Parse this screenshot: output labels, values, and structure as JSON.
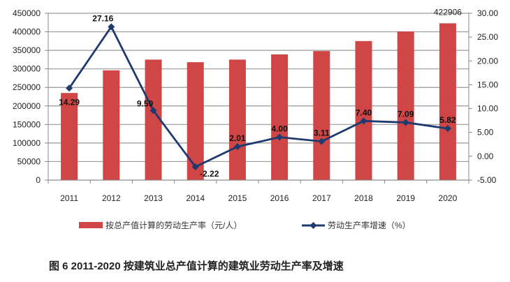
{
  "chart_data": {
    "type": "bar+line",
    "categories": [
      "2011",
      "2012",
      "2013",
      "2014",
      "2015",
      "2016",
      "2017",
      "2018",
      "2019",
      "2020"
    ],
    "series": [
      {
        "name": "按总产值计算的劳动生产率（元/人）",
        "type": "bar",
        "axis": "left",
        "color": "#d04545",
        "values": [
          235000,
          296000,
          325000,
          318000,
          325000,
          339000,
          348000,
          375000,
          401000,
          422906
        ],
        "data_labels": {
          "9": "422906"
        }
      },
      {
        "name": "劳动生产率增速（%）",
        "type": "line",
        "axis": "right",
        "color": "#1f3a6e",
        "values": [
          14.29,
          27.16,
          9.59,
          -2.22,
          2.01,
          4.0,
          3.11,
          7.4,
          7.09,
          5.82
        ],
        "data_labels": [
          "14.29",
          "27.16",
          "9.59",
          "-2.22",
          "2.01",
          "4.00",
          "3.11",
          "7.40",
          "7.09",
          "5.82"
        ]
      }
    ],
    "left_axis": {
      "ylim": [
        0,
        450000
      ],
      "ticks": [
        "0",
        "50000",
        "100000",
        "150000",
        "200000",
        "250000",
        "300000",
        "350000",
        "400000",
        "450000"
      ]
    },
    "right_axis": {
      "ylim": [
        -5,
        30
      ],
      "ticks": [
        "-5.00",
        "0.00",
        "5.00",
        "10.00",
        "15.00",
        "20.00",
        "25.00",
        "30.00"
      ]
    },
    "grid": true,
    "legend": "bottom",
    "title": "图 6   2011-2020 按建筑业总产值计算的建筑业劳动生产率及增速"
  }
}
